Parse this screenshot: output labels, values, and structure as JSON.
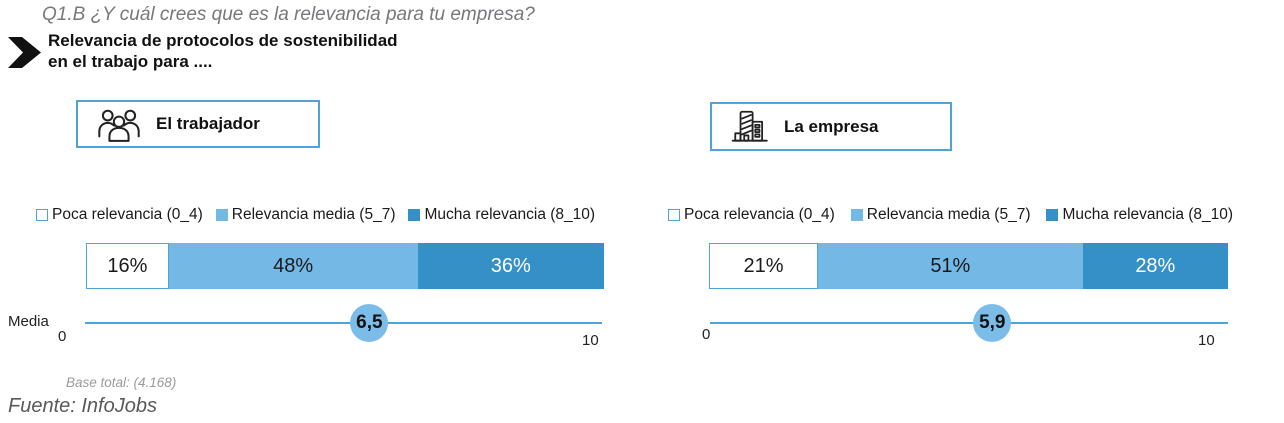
{
  "header": {
    "question": "Q1.B ¿Y cuál crees que es la relevancia para tu empresa?",
    "subtitle_line1": "Relevancia de protocolos de sostenibilidad",
    "subtitle_line2": "en el trabajo para ...."
  },
  "groups": [
    {
      "label": "El trabajador",
      "icon": "people-icon"
    },
    {
      "label": "La empresa",
      "icon": "building-icon"
    }
  ],
  "legend": [
    {
      "label": "Poca relevancia (0_4)",
      "color": "#ffffff",
      "border": "#4fa3d9"
    },
    {
      "label": "Relevancia media (5_7)",
      "color": "#74b9e6",
      "border": "#74b9e6"
    },
    {
      "label": "Mucha relevancia (8_10)",
      "color": "#3690c8",
      "border": "#3690c8"
    }
  ],
  "chart_data": [
    {
      "type": "bar",
      "group": "El trabajador",
      "categories": [
        "Poca relevancia (0_4)",
        "Relevancia media (5_7)",
        "Mucha relevancia (8_10)"
      ],
      "values": [
        16,
        48,
        36
      ],
      "value_labels": [
        "16%",
        "48%",
        "36%"
      ],
      "media_label": "Media",
      "media_value": "6,5",
      "media_numeric": 6.5,
      "axis_min": "0",
      "axis_max": "10",
      "axis_range": [
        0,
        10
      ],
      "marker_pos_pct": 55,
      "legend_position": "top"
    },
    {
      "type": "bar",
      "group": "La empresa",
      "categories": [
        "Poca relevancia (0_4)",
        "Relevancia media (5_7)",
        "Mucha relevancia (8_10)"
      ],
      "values": [
        21,
        51,
        28
      ],
      "value_labels": [
        "21%",
        "51%",
        "28%"
      ],
      "media_value": "5,9",
      "media_numeric": 5.9,
      "axis_min": "0",
      "axis_max": "10",
      "axis_range": [
        0,
        10
      ],
      "marker_pos_pct": 54.5,
      "legend_position": "top"
    }
  ],
  "colors": {
    "accent_border": "#4fa3d9",
    "segment_low": "#ffffff",
    "segment_mid": "#74b9e6",
    "segment_high": "#3690c8",
    "marker_fill": "#7cbce8",
    "segment_text_dark": "#1a1a1a",
    "segment_text_light": "#ffffff"
  },
  "footer": {
    "base_total": "Base total: (4.168)",
    "source": "Fuente: InfoJobs"
  }
}
